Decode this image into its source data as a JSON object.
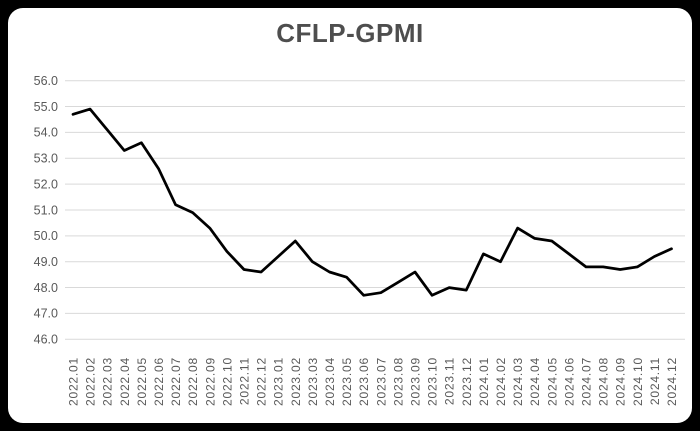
{
  "title": "CFLP-GPMI",
  "chart_data": {
    "type": "line",
    "title": "CFLP-GPMI",
    "x": [
      "2022.01",
      "2022.02",
      "2022.03",
      "2022.04",
      "2022.05",
      "2022.06",
      "2022.07",
      "2022.08",
      "2022.09",
      "2022.10",
      "2022.11",
      "2022.12",
      "2023.01",
      "2023.02",
      "2023.03",
      "2023.04",
      "2023.05",
      "2023.06",
      "2023.07",
      "2023.08",
      "2023.09",
      "2023.10",
      "2023.11",
      "2023.12",
      "2024.01",
      "2024.02",
      "2024.03",
      "2024.04",
      "2024.05",
      "2024.06",
      "2024.07",
      "2024.08",
      "2024.09",
      "2024.10",
      "2024.11",
      "2024.12"
    ],
    "values": [
      54.7,
      54.9,
      54.1,
      53.3,
      53.6,
      52.6,
      51.2,
      50.9,
      50.3,
      49.4,
      48.7,
      48.6,
      49.2,
      49.8,
      49.0,
      48.6,
      48.4,
      47.7,
      47.8,
      48.2,
      48.6,
      47.7,
      48.0,
      47.9,
      49.3,
      49.0,
      50.3,
      49.9,
      49.8,
      49.3,
      48.8,
      48.8,
      48.7,
      48.8,
      49.2,
      49.5
    ],
    "ylim": [
      46.0,
      56.0
    ],
    "ytick_labels": [
      "56.0",
      "55.0",
      "54.0",
      "53.0",
      "52.0",
      "51.0",
      "50.0",
      "49.0",
      "48.0",
      "47.0",
      "46.0"
    ],
    "xlabel": "",
    "ylabel": "",
    "grid": "horizontal",
    "legend": "none",
    "colors": {
      "line": "#000000",
      "grid": "#d9d9d9",
      "tick_label": "#595959",
      "title": "#4e4e4e",
      "card_background": "#ffffff",
      "frame_background": "#000000"
    }
  }
}
